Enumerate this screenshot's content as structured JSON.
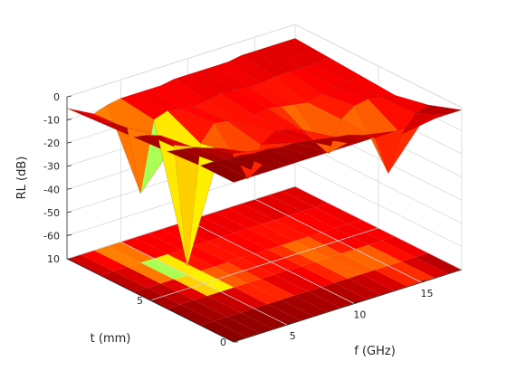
{
  "chart_data": {
    "type": "surface",
    "title": "",
    "xlabel": "f (GHz)",
    "ylabel": "t (mm)",
    "zlabel": "RL (dB)",
    "xlim": [
      1,
      18
    ],
    "ylim": [
      0,
      10
    ],
    "zlim": [
      -70,
      0
    ],
    "x_ticks": [
      5,
      10,
      15
    ],
    "y_ticks": [
      0,
      5,
      10
    ],
    "z_ticks": [
      0,
      -10,
      -20,
      -30,
      -40,
      -50,
      -60
    ],
    "grid": true,
    "colormap": "jet",
    "contour_projection_on_floor": true,
    "surface": {
      "x_ghz": [
        1,
        2,
        3,
        4,
        5,
        6,
        7,
        8,
        9,
        10,
        11,
        12,
        13,
        14,
        15,
        16,
        17,
        18
      ],
      "t_mm": [
        0,
        2,
        4,
        6,
        8,
        10
      ],
      "rl_db": [
        [
          -1,
          -1,
          -1,
          -1,
          -1,
          -1,
          -1,
          -1,
          -1,
          -1,
          -1,
          -1,
          -1,
          -1,
          -1,
          -1,
          -1,
          -1
        ],
        [
          -1,
          -1,
          -2,
          -2,
          -3,
          -3,
          -4,
          -4,
          -5,
          -6,
          -7,
          -8,
          -10,
          -13,
          -30,
          -15,
          -8,
          -6
        ],
        [
          -2,
          -3,
          -4,
          -6,
          -8,
          -12,
          -25,
          -12,
          -8,
          -9,
          -11,
          -18,
          -25,
          -12,
          -8,
          -7,
          -8,
          -9
        ],
        [
          -3,
          -4,
          -6,
          -12,
          -66,
          -15,
          -8,
          -9,
          -12,
          -10,
          -9,
          -10,
          -11,
          -12,
          -10,
          -9,
          -8,
          -8
        ],
        [
          -4,
          -6,
          -10,
          -40,
          -10,
          -8,
          -9,
          -10,
          -9,
          -8,
          -8,
          -9,
          -9,
          -8,
          -8,
          -8,
          -8,
          -7
        ],
        [
          -5,
          -8,
          -11,
          -9,
          -8,
          -8,
          -8,
          -8,
          -7,
          -7,
          -7,
          -7,
          -7,
          -6,
          -6,
          -6,
          -6,
          -6
        ]
      ]
    }
  }
}
